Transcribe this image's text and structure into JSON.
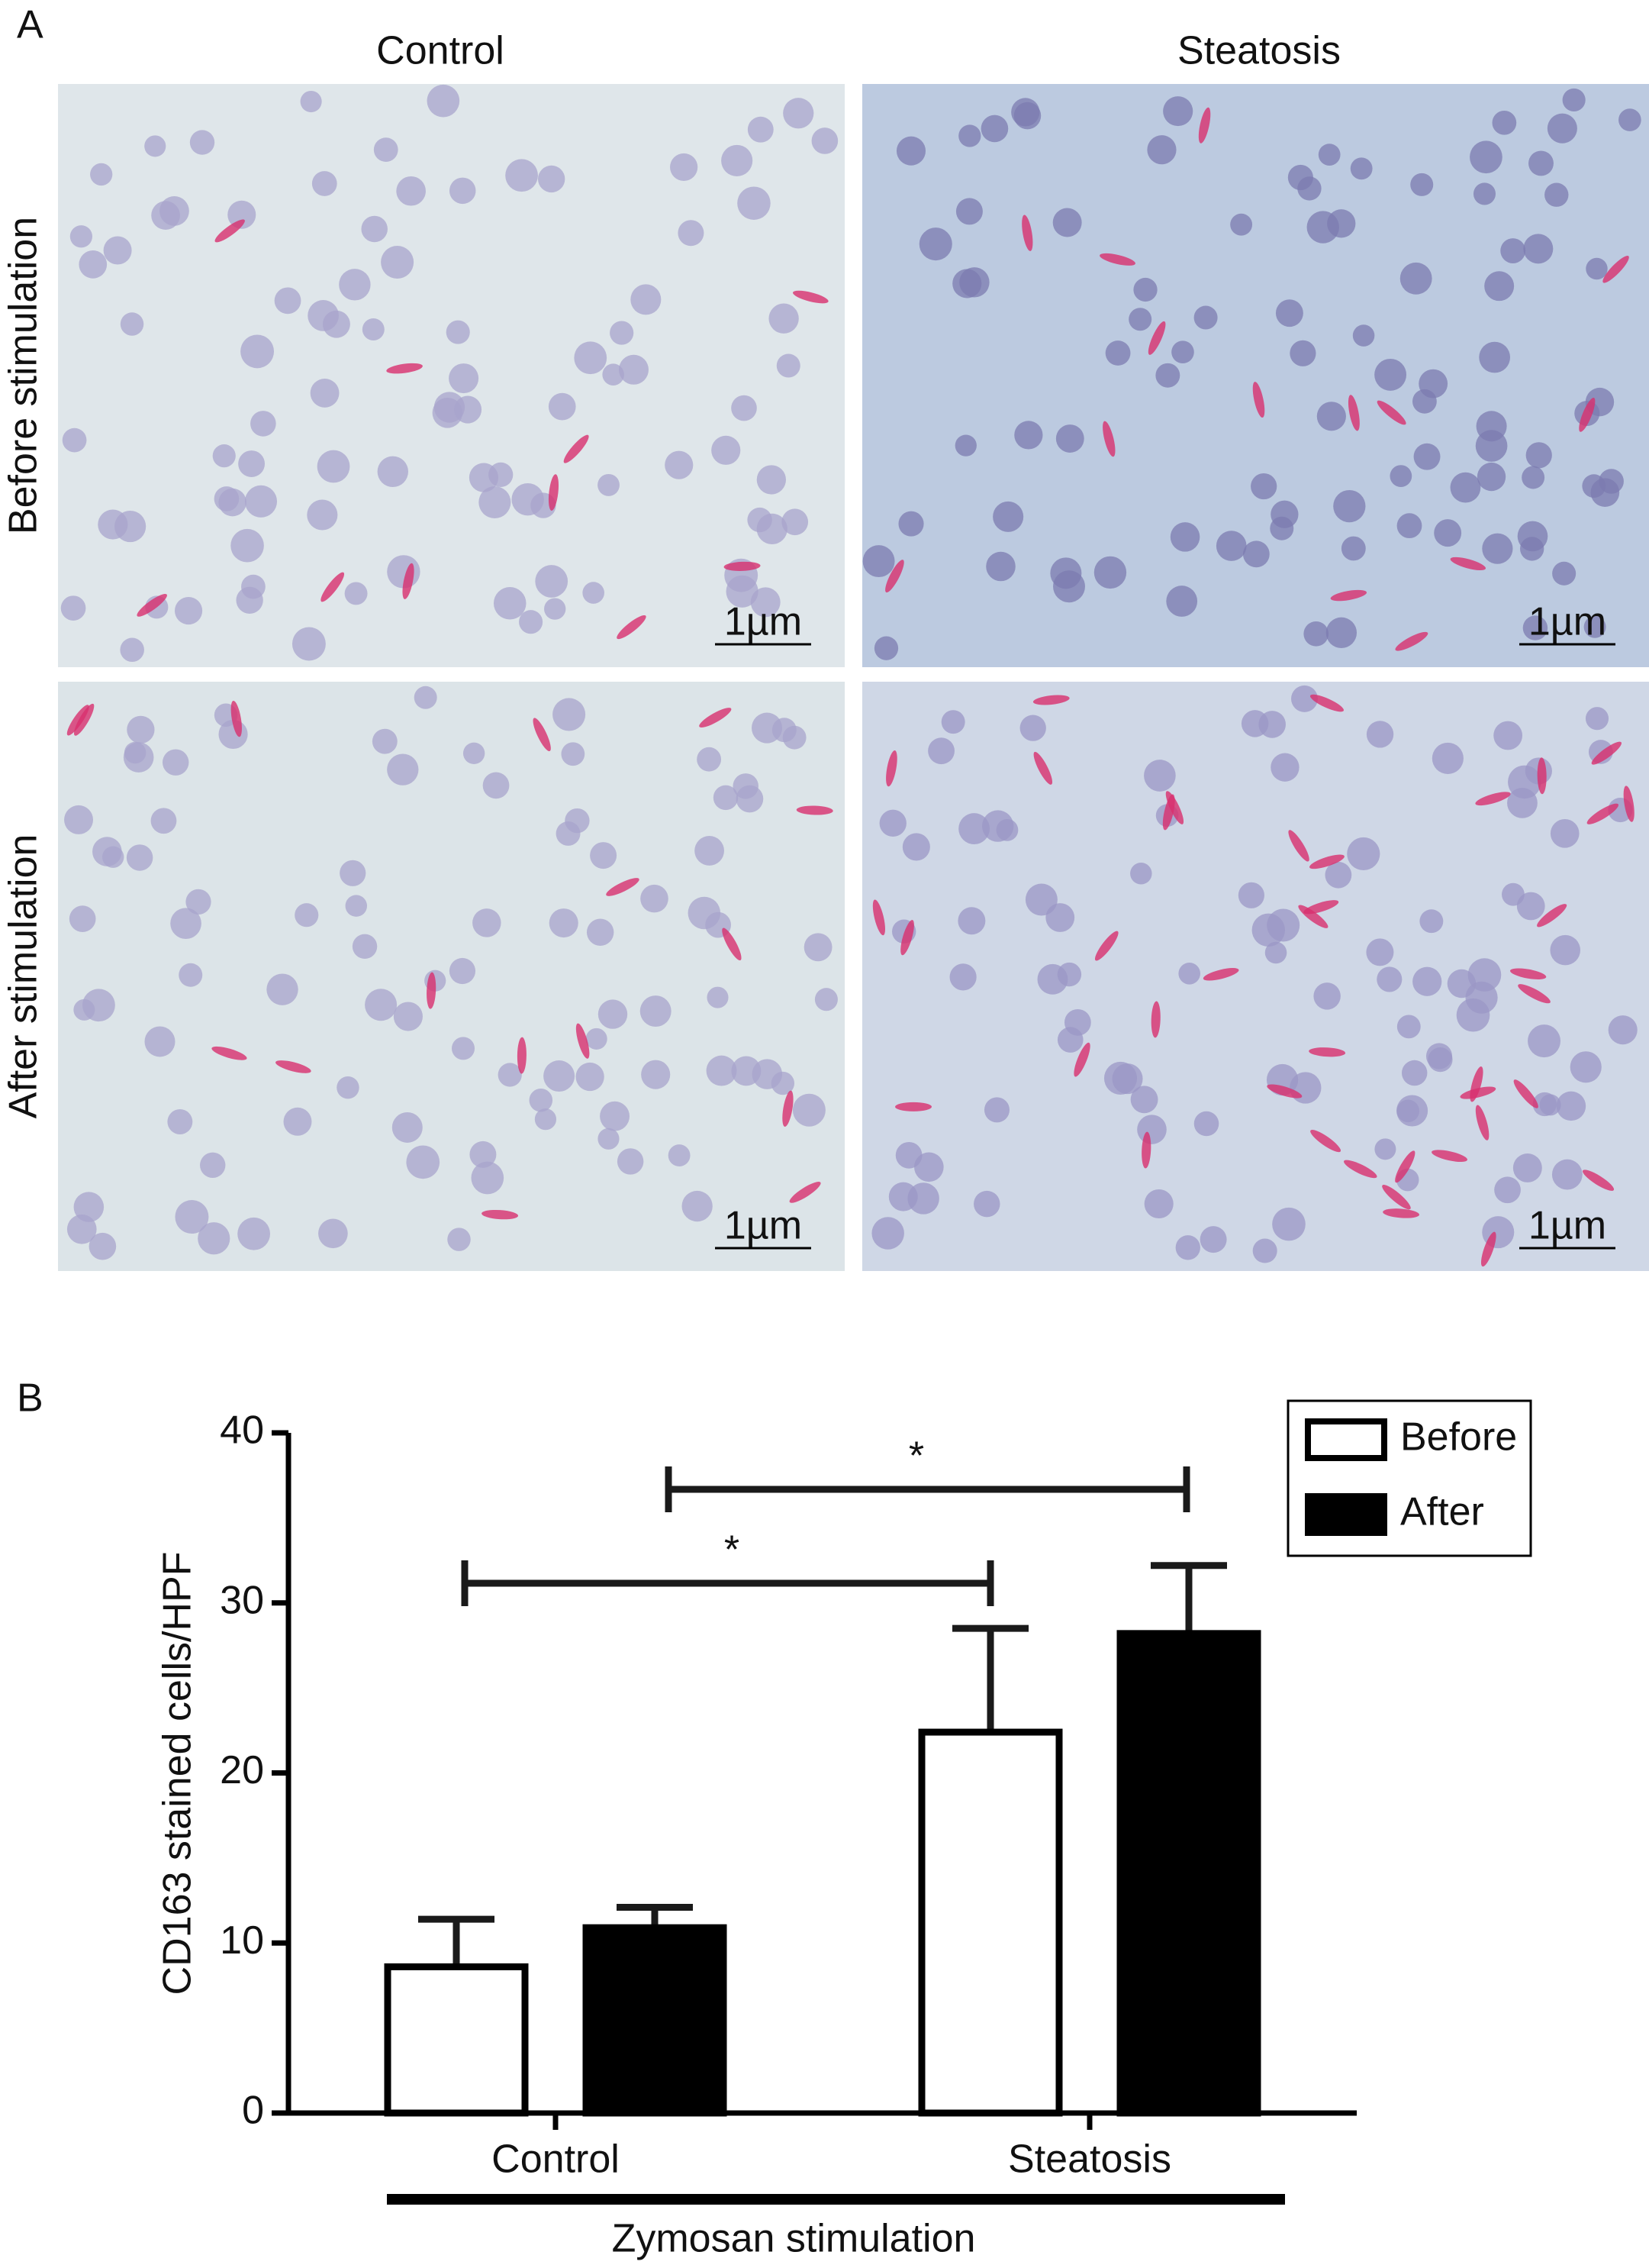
{
  "panel_a": {
    "label": "A",
    "columns": [
      "Control",
      "Steatosis"
    ],
    "rows": [
      "Before stimulation",
      "After stimulation"
    ],
    "scale_bars": [
      "1µm",
      "1µm",
      "1µm",
      "1µm"
    ]
  },
  "chart_data": {
    "type": "bar",
    "panel_label": "B",
    "ylabel": "CD163 stained cells/HPF",
    "xlabel": "Zymosan stimulation",
    "categories": [
      "Control",
      "Steatosis"
    ],
    "series": [
      {
        "name": "Before",
        "color": "#ffffff",
        "values": [
          8.6,
          22.4
        ],
        "errors": [
          2.8,
          6.1
        ]
      },
      {
        "name": "After",
        "color": "#000000",
        "values": [
          10.9,
          28.2
        ],
        "errors": [
          1.2,
          4.0
        ]
      }
    ],
    "ylim": [
      0,
      40
    ],
    "yticks": [
      0,
      10,
      20,
      30,
      40
    ],
    "legend": "upper right",
    "annotations": [
      "*",
      "*"
    ]
  }
}
